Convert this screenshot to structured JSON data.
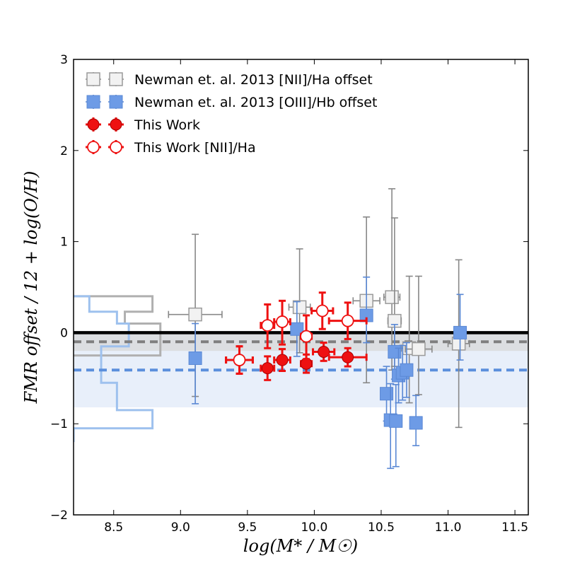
{
  "chart_data": {
    "type": "scatter",
    "xlabel": "log(M* / M☉)",
    "ylabel": "FMR offset / 12 + log(O/H)",
    "xlim": [
      8.2,
      11.6
    ],
    "ylim": [
      -2,
      3
    ],
    "x_ticks": [
      "8.5",
      "9.0",
      "9.5",
      "10.0",
      "10.5",
      "11.0",
      "11.5"
    ],
    "y_ticks": [
      "−2",
      "−1",
      "0",
      "1",
      "2",
      "3"
    ],
    "reference_lines": [
      {
        "name": "zero",
        "y": 0.0,
        "color": "#000000",
        "style": "solid"
      },
      {
        "name": "nii-mean",
        "y": -0.1,
        "color": "#7f7f7f",
        "style": "dashed"
      },
      {
        "name": "oiii-mean",
        "y": -0.41,
        "color": "#5b8fdc",
        "style": "dashed"
      }
    ],
    "shaded_bands": [
      {
        "name": "oiii-band",
        "y": [
          -0.82,
          0.0
        ],
        "color": "#dbe7f8"
      },
      {
        "name": "nii-band",
        "y": [
          -0.2,
          0.0
        ],
        "color": "#d8d8d8"
      }
    ],
    "histograms": [
      {
        "name": "nii-hist",
        "color": "#b0b0b0",
        "bins": [
          {
            "y": [
              0.23,
              0.4
            ],
            "count": 1.0
          },
          {
            "y": [
              0.1,
              0.23
            ],
            "count": 0.65
          },
          {
            "y": [
              -0.25,
              0.1
            ],
            "count": 1.1
          }
        ]
      },
      {
        "name": "oiii-hist",
        "color": "#9ec1ee",
        "bins": [
          {
            "y": [
              0.23,
              0.4
            ],
            "count": 0.2
          },
          {
            "y": [
              0.1,
              0.23
            ],
            "count": 0.55
          },
          {
            "y": [
              -0.15,
              0.1
            ],
            "count": 0.7
          },
          {
            "y": [
              -0.55,
              -0.15
            ],
            "count": 0.35
          },
          {
            "y": [
              -0.85,
              -0.55
            ],
            "count": 0.55
          },
          {
            "y": [
              -1.05,
              -0.85
            ],
            "count": 1.0
          },
          {
            "y": [
              -1.2,
              -1.05
            ],
            "count": 0.0
          }
        ]
      }
    ],
    "legend": {
      "placement": "top-left",
      "entries": [
        {
          "label": "Newman et. al. 2013 [NII]/Ha offset",
          "marker": "square-open"
        },
        {
          "label": "Newman et. al. 2013 [OIII]/Hb offset",
          "marker": "square-blue"
        },
        {
          "label": "This Work",
          "marker": "circle-red"
        },
        {
          "label": "This Work [NII]/Ha",
          "marker": "circle-open-red"
        }
      ]
    },
    "series": [
      {
        "name": "Newman et. al. 2013 [NII]/Ha offset",
        "marker": "square-open",
        "points": [
          {
            "x": 9.11,
            "y": 0.2,
            "xerr": 0.2,
            "yerr_lo": 0.9,
            "yerr_hi": 0.88
          },
          {
            "x": 9.89,
            "y": 0.28,
            "xerr": 0.08,
            "yerr_lo": 0.5,
            "yerr_hi": 0.64
          },
          {
            "x": 10.39,
            "y": 0.35,
            "xerr": 0.1,
            "yerr_lo": 0.9,
            "yerr_hi": 0.92
          },
          {
            "x": 10.58,
            "y": 0.39,
            "xerr": 0.06,
            "yerr_lo": 0.8,
            "yerr_hi": 1.19
          },
          {
            "x": 10.6,
            "y": 0.13,
            "xerr": 0.05,
            "yerr_lo": 0.5,
            "yerr_hi": 1.13
          },
          {
            "x": 10.71,
            "y": -0.17,
            "xerr": 0.06,
            "yerr_lo": 0.6,
            "yerr_hi": 0.79
          },
          {
            "x": 10.78,
            "y": -0.18,
            "xerr": 0.1,
            "yerr_lo": 0.5,
            "yerr_hi": 0.8
          },
          {
            "x": 11.08,
            "y": -0.12,
            "xerr": 0.08,
            "yerr_lo": 0.92,
            "yerr_hi": 0.92
          }
        ]
      },
      {
        "name": "Newman et. al. 2013 [OIII]/Hb offset",
        "marker": "square-blue",
        "points": [
          {
            "x": 9.11,
            "y": -0.28,
            "xerr": 0.0,
            "yerr_lo": 0.5,
            "yerr_hi": 0.38
          },
          {
            "x": 9.87,
            "y": 0.04,
            "xerr": 0.0,
            "yerr_lo": 0.3,
            "yerr_hi": 0.3
          },
          {
            "x": 10.39,
            "y": 0.19,
            "xerr": 0.0,
            "yerr_lo": 0.3,
            "yerr_hi": 0.42
          },
          {
            "x": 10.54,
            "y": -0.67,
            "xerr": 0.0,
            "yerr_lo": 0.3,
            "yerr_hi": 0.3
          },
          {
            "x": 10.57,
            "y": -0.96,
            "xerr": 0.0,
            "yerr_lo": 0.53,
            "yerr_hi": 0.4
          },
          {
            "x": 10.6,
            "y": -0.21,
            "xerr": 0.0,
            "yerr_lo": 0.3,
            "yerr_hi": 0.3
          },
          {
            "x": 10.61,
            "y": -0.97,
            "xerr": 0.0,
            "yerr_lo": 0.5,
            "yerr_hi": 0.4
          },
          {
            "x": 10.63,
            "y": -0.47,
            "xerr": 0.0,
            "yerr_lo": 0.3,
            "yerr_hi": 0.3
          },
          {
            "x": 10.66,
            "y": -0.44,
            "xerr": 0.0,
            "yerr_lo": 0.3,
            "yerr_hi": 0.3
          },
          {
            "x": 10.69,
            "y": -0.41,
            "xerr": 0.0,
            "yerr_lo": 0.3,
            "yerr_hi": 0.3
          },
          {
            "x": 10.76,
            "y": -0.99,
            "xerr": 0.0,
            "yerr_lo": 0.25,
            "yerr_hi": 0.3
          },
          {
            "x": 11.09,
            "y": 0.0,
            "xerr": 0.0,
            "yerr_lo": 0.3,
            "yerr_hi": 0.42
          }
        ]
      },
      {
        "name": "This Work",
        "marker": "circle-red",
        "points": [
          {
            "x": 9.44,
            "y": -0.3,
            "xerr": 0.1,
            "yerr_lo": 0.15,
            "yerr_hi": 0.15
          },
          {
            "x": 9.65,
            "y": -0.39,
            "xerr": 0.05,
            "yerr_lo": 0.13,
            "yerr_hi": 0.13
          },
          {
            "x": 9.76,
            "y": -0.3,
            "xerr": 0.06,
            "yerr_lo": 0.12,
            "yerr_hi": 0.12
          },
          {
            "x": 9.94,
            "y": -0.34,
            "xerr": 0.04,
            "yerr_lo": 0.1,
            "yerr_hi": 0.1
          },
          {
            "x": 10.07,
            "y": -0.21,
            "xerr": 0.08,
            "yerr_lo": 0.1,
            "yerr_hi": 0.1
          },
          {
            "x": 10.25,
            "y": -0.27,
            "xerr": 0.14,
            "yerr_lo": 0.1,
            "yerr_hi": 0.1
          }
        ]
      },
      {
        "name": "This Work [NII]/Ha",
        "marker": "circle-open-red",
        "points": [
          {
            "x": 9.44,
            "y": -0.3,
            "xerr": 0.1,
            "yerr_lo": 0.15,
            "yerr_hi": 0.15
          },
          {
            "x": 9.65,
            "y": 0.08,
            "xerr": 0.05,
            "yerr_lo": 0.25,
            "yerr_hi": 0.23
          },
          {
            "x": 9.76,
            "y": 0.12,
            "xerr": 0.06,
            "yerr_lo": 0.25,
            "yerr_hi": 0.23
          },
          {
            "x": 9.94,
            "y": -0.04,
            "xerr": 0.04,
            "yerr_lo": 0.25,
            "yerr_hi": 0.23
          },
          {
            "x": 10.06,
            "y": 0.24,
            "xerr": 0.08,
            "yerr_lo": 0.2,
            "yerr_hi": 0.2
          },
          {
            "x": 10.25,
            "y": 0.13,
            "xerr": 0.14,
            "yerr_lo": 0.2,
            "yerr_hi": 0.2
          }
        ]
      }
    ]
  }
}
